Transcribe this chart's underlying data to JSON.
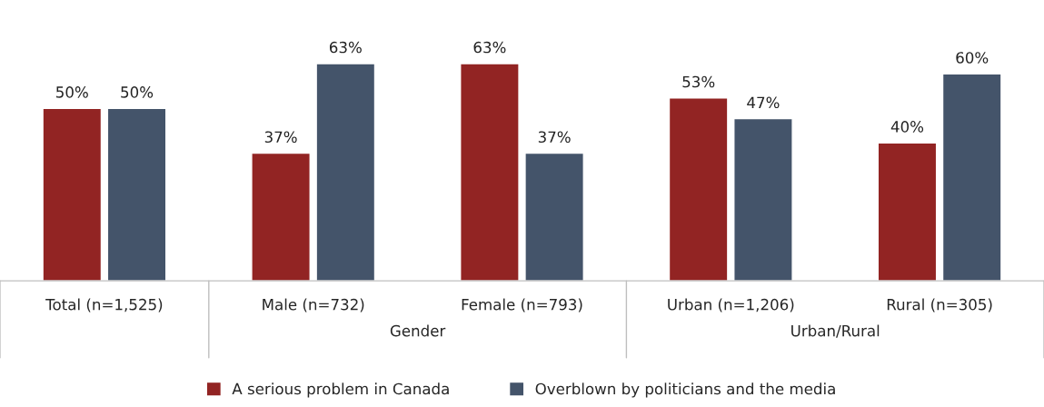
{
  "chart_data": {
    "type": "bar",
    "categories": [
      "Total (n=1,525)",
      "Male (n=732)",
      "Female (n=793)",
      "Urban (n=1,206)",
      "Rural (n=305)"
    ],
    "series": [
      {
        "name": "A serious problem in Canada",
        "color": "#922423",
        "values": [
          50,
          37,
          63,
          53,
          40
        ],
        "value_labels": [
          "50%",
          "37%",
          "63%",
          "53%",
          "40%"
        ]
      },
      {
        "name": "Overblown by politicians and the media",
        "color": "#44546a",
        "values": [
          50,
          63,
          37,
          47,
          60
        ],
        "value_labels": [
          "50%",
          "63%",
          "37%",
          "47%",
          "60%"
        ]
      }
    ],
    "annotations": [
      "Gender",
      "Urban/Rural"
    ],
    "legend": "bottom"
  }
}
